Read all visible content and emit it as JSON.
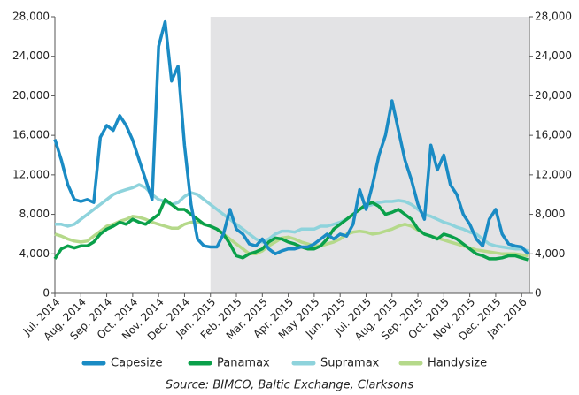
{
  "chart_data": {
    "type": "line",
    "source": "Source: BIMCO, Baltic Exchange, Clarksons",
    "x": [
      0,
      0.25,
      0.5,
      0.75,
      1,
      1.25,
      1.5,
      1.75,
      2,
      2.25,
      2.5,
      2.75,
      3,
      3.25,
      3.5,
      3.75,
      4,
      4.25,
      4.5,
      4.75,
      5,
      5.25,
      5.5,
      5.75,
      6,
      6.25,
      6.5,
      6.75,
      7,
      7.25,
      7.5,
      7.75,
      8,
      8.25,
      8.5,
      8.75,
      9,
      9.25,
      9.5,
      9.75,
      10,
      10.25,
      10.5,
      10.75,
      11,
      11.25,
      11.5,
      11.75,
      12,
      12.25,
      12.5,
      12.75,
      13,
      13.25,
      13.5,
      13.75,
      14,
      14.25,
      14.5,
      14.75,
      15,
      15.25,
      15.5,
      15.75,
      16,
      16.25,
      16.5,
      16.75,
      17,
      17.25,
      17.5,
      17.75,
      18,
      18.25
    ],
    "xlim": [
      0,
      18.3
    ],
    "xticks": [
      {
        "value": 0,
        "label": "Jul. 2014"
      },
      {
        "value": 1,
        "label": "Aug. 2014"
      },
      {
        "value": 2,
        "label": "Sep. 2014"
      },
      {
        "value": 3,
        "label": "Oct. 2014"
      },
      {
        "value": 4,
        "label": "Nov. 2014"
      },
      {
        "value": 5,
        "label": "Dec. 2014"
      },
      {
        "value": 6,
        "label": "Jan. 2015"
      },
      {
        "value": 7,
        "label": "Feb. 2015"
      },
      {
        "value": 8,
        "label": "Mar. 2015"
      },
      {
        "value": 9,
        "label": "Apr. 2015"
      },
      {
        "value": 10,
        "label": "May 2015"
      },
      {
        "value": 11,
        "label": "Jun. 2015"
      },
      {
        "value": 12,
        "label": "Jul. 2015"
      },
      {
        "value": 13,
        "label": "Aug. 2015"
      },
      {
        "value": 14,
        "label": "Sep. 2015"
      },
      {
        "value": 15,
        "label": "Oct. 2015"
      },
      {
        "value": 16,
        "label": "Nov. 2015"
      },
      {
        "value": 17,
        "label": "Dec. 2015"
      },
      {
        "value": 18,
        "label": "Jan. 2016"
      }
    ],
    "shaded_xrange": [
      6,
      18.3
    ],
    "shade_color": "#e3e3e5",
    "ylim": [
      0,
      28000
    ],
    "yticks": [
      0,
      {
        "value": 4000,
        "label": "4,000"
      },
      {
        "value": 8000,
        "label": "8,000"
      },
      {
        "value": 12000,
        "label": "12,000"
      },
      {
        "value": 16000,
        "label": "16,000"
      },
      {
        "value": 20000,
        "label": "20,000"
      },
      {
        "value": 24000,
        "label": "24,000"
      },
      {
        "value": 28000,
        "label": "28,000"
      }
    ],
    "y2lim": [
      0,
      28000
    ],
    "y2ticks": [
      0,
      {
        "value": 4000,
        "label": "4,000"
      },
      {
        "value": 8000,
        "label": "8,000"
      },
      {
        "value": 12000,
        "label": "12,000"
      },
      {
        "value": 16000,
        "label": "16,000"
      },
      {
        "value": 20000,
        "label": "20,000"
      },
      {
        "value": 24000,
        "label": "24,000"
      },
      {
        "value": 28000,
        "label": "28,000"
      }
    ],
    "legend": "bottom",
    "series": [
      {
        "name": "Capesize",
        "color": "#1a8bc4",
        "values": [
          15600,
          13500,
          11000,
          9500,
          9300,
          9500,
          9200,
          15800,
          17000,
          16500,
          18000,
          17000,
          15500,
          13500,
          11500,
          9500,
          25000,
          27500,
          21500,
          23000,
          15000,
          9000,
          5500,
          4800,
          4700,
          4700,
          6000,
          8500,
          6500,
          6000,
          5000,
          4800,
          5500,
          4500,
          4000,
          4300,
          4500,
          4500,
          4700,
          4700,
          5000,
          5500,
          6000,
          5500,
          6000,
          5800,
          7000,
          10500,
          8500,
          11000,
          14000,
          16000,
          19500,
          16500,
          13500,
          11500,
          9000,
          7500,
          15000,
          12500,
          14000,
          11000,
          10000,
          8000,
          7000,
          5500,
          4800,
          7500,
          8500,
          6000,
          5000,
          4800,
          4700,
          4000
        ]
      },
      {
        "name": "Panamax",
        "color": "#0aa04a",
        "values": [
          3500,
          4500,
          4800,
          4600,
          4800,
          4800,
          5200,
          6000,
          6500,
          6800,
          7200,
          7000,
          7500,
          7200,
          7000,
          7500,
          8000,
          9500,
          9000,
          8500,
          8500,
          8000,
          7500,
          7000,
          6800,
          6500,
          6000,
          5000,
          3800,
          3600,
          4000,
          4200,
          4500,
          5200,
          5600,
          5500,
          5200,
          5000,
          4700,
          4500,
          4500,
          4800,
          5500,
          6500,
          7000,
          7500,
          8000,
          8500,
          9000,
          9200,
          8800,
          8000,
          8200,
          8500,
          8000,
          7500,
          6500,
          6000,
          5800,
          5500,
          6000,
          5800,
          5500,
          5000,
          4500,
          4000,
          3800,
          3500,
          3500,
          3600,
          3800,
          3800,
          3600,
          3400
        ]
      },
      {
        "name": "Supramax",
        "color": "#8ed3dc",
        "values": [
          7000,
          7000,
          6800,
          7000,
          7500,
          8000,
          8500,
          9000,
          9500,
          10000,
          10300,
          10500,
          10700,
          11000,
          10700,
          10000,
          9500,
          9300,
          9000,
          9200,
          9800,
          10200,
          10000,
          9500,
          9000,
          8500,
          8000,
          7500,
          7000,
          6500,
          6000,
          5500,
          5200,
          5500,
          6000,
          6300,
          6300,
          6200,
          6500,
          6500,
          6500,
          6800,
          6800,
          7000,
          7200,
          7500,
          8000,
          8500,
          8800,
          9000,
          9200,
          9300,
          9300,
          9400,
          9300,
          9000,
          8500,
          8000,
          7800,
          7500,
          7200,
          7000,
          6700,
          6500,
          6200,
          6000,
          5500,
          5000,
          4800,
          4700,
          4600,
          4500,
          4500,
          4300
        ]
      },
      {
        "name": "Handysize",
        "color": "#b5d98a",
        "values": [
          6000,
          5800,
          5500,
          5300,
          5200,
          5300,
          5800,
          6300,
          6800,
          7000,
          7300,
          7500,
          7800,
          7700,
          7500,
          7200,
          7000,
          6800,
          6600,
          6600,
          7000,
          7200,
          7200,
          7000,
          6800,
          6500,
          6000,
          5500,
          5000,
          4500,
          4000,
          4000,
          4300,
          4800,
          5200,
          5600,
          5700,
          5500,
          5200,
          5000,
          4800,
          4800,
          5000,
          5200,
          5500,
          6000,
          6200,
          6300,
          6200,
          6000,
          6100,
          6300,
          6500,
          6800,
          7000,
          6800,
          6400,
          6000,
          5800,
          5600,
          5400,
          5200,
          5000,
          4800,
          4600,
          4400,
          4300,
          4200,
          4100,
          4000,
          4000,
          4000,
          3900,
          3800
        ]
      }
    ]
  }
}
